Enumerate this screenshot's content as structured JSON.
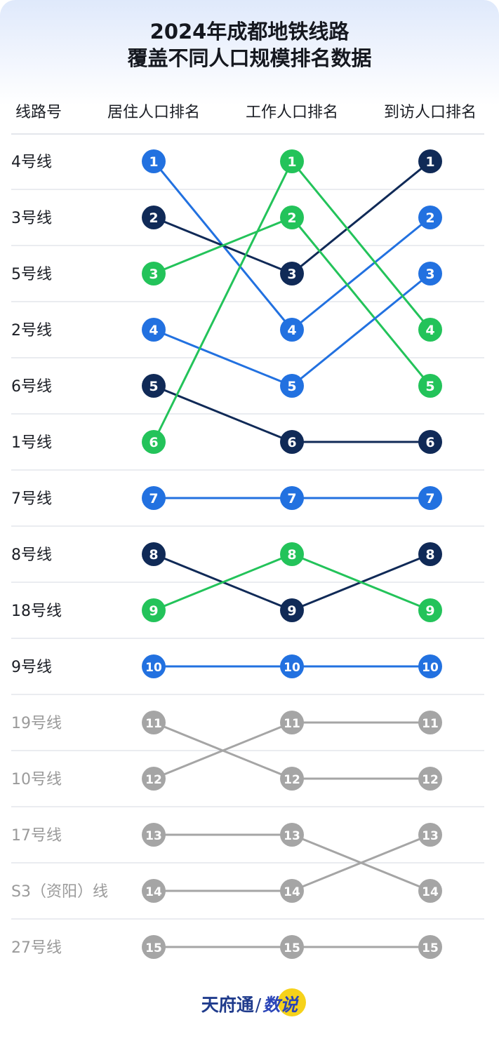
{
  "title_line1": "2024年成都地铁线路",
  "title_line2_pre": "覆盖不同人口",
  "title_line2_hl": "规模排名",
  "title_line2_post": "数据",
  "colors": {
    "blue": "#2271e0",
    "navy": "#102a57",
    "green": "#23c35a",
    "gray": "#a5a5a5",
    "rule": "#e3e6ec"
  },
  "chart_data": {
    "type": "bump",
    "title": "2024年成都地铁线路覆盖不同人口规模排名数据",
    "headers": [
      "线路号",
      "居住人口排名",
      "工作人口排名",
      "到访人口排名"
    ],
    "lines": [
      {
        "label": "4号线",
        "ranks": [
          1,
          4,
          2
        ],
        "color": "blue",
        "muted": false
      },
      {
        "label": "3号线",
        "ranks": [
          2,
          3,
          1
        ],
        "color": "navy",
        "muted": false
      },
      {
        "label": "5号线",
        "ranks": [
          3,
          2,
          5
        ],
        "color": "green",
        "muted": false
      },
      {
        "label": "2号线",
        "ranks": [
          4,
          5,
          3
        ],
        "color": "blue",
        "muted": false
      },
      {
        "label": "6号线",
        "ranks": [
          5,
          6,
          6
        ],
        "color": "navy",
        "muted": false
      },
      {
        "label": "1号线",
        "ranks": [
          6,
          1,
          4
        ],
        "color": "green",
        "muted": false
      },
      {
        "label": "7号线",
        "ranks": [
          7,
          7,
          7
        ],
        "color": "blue",
        "muted": false
      },
      {
        "label": "8号线",
        "ranks": [
          8,
          9,
          8
        ],
        "color": "navy",
        "muted": false
      },
      {
        "label": "18号线",
        "ranks": [
          9,
          8,
          9
        ],
        "color": "green",
        "muted": false
      },
      {
        "label": "9号线",
        "ranks": [
          10,
          10,
          10
        ],
        "color": "blue",
        "muted": false
      },
      {
        "label": "19号线",
        "ranks": [
          11,
          12,
          12
        ],
        "color": "gray",
        "muted": true
      },
      {
        "label": "10号线",
        "ranks": [
          12,
          11,
          11
        ],
        "color": "gray",
        "muted": true
      },
      {
        "label": "17号线",
        "ranks": [
          13,
          13,
          14
        ],
        "color": "gray",
        "muted": true
      },
      {
        "label": "S3（资阳）线",
        "ranks": [
          14,
          14,
          13
        ],
        "color": "gray",
        "muted": true
      },
      {
        "label": "27号线",
        "ranks": [
          15,
          15,
          15
        ],
        "color": "gray",
        "muted": true
      }
    ]
  },
  "footer": {
    "source": "天府通",
    "separator": "/",
    "brand": "数说"
  }
}
